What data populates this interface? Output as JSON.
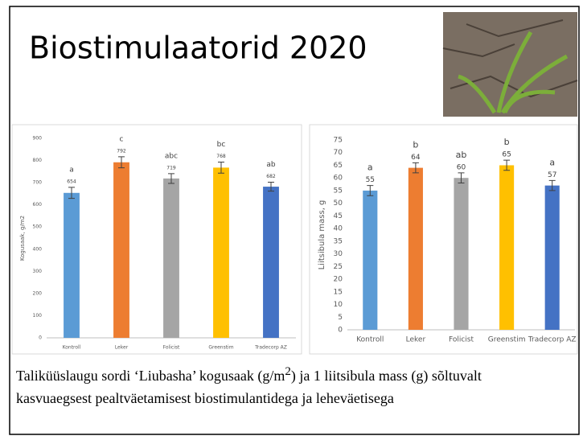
{
  "title": "Biostimulaatorid 2020",
  "chart_data": [
    {
      "type": "bar",
      "categories": [
        "Kontroll",
        "Leker",
        "Folicist",
        "Greenstim",
        "Tradecorp AZ"
      ],
      "values": [
        654,
        792,
        719,
        768,
        682
      ],
      "errors": [
        25,
        25,
        22,
        25,
        20
      ],
      "annotations": [
        "a",
        "c",
        "abc",
        "bc",
        "ab"
      ],
      "colors": [
        "#5b9bd5",
        "#ed7d31",
        "#a5a5a5",
        "#ffc000",
        "#4472c4"
      ],
      "ylabel": "Kogusaak, g/m2",
      "ylim": [
        0,
        900
      ],
      "yticks": [
        0,
        100,
        200,
        300,
        400,
        500,
        600,
        700,
        800,
        900
      ],
      "grid": false
    },
    {
      "type": "bar",
      "categories": [
        "Kontroll",
        "Leker",
        "Folicist",
        "Greenstim",
        "Tradecorp AZ"
      ],
      "values": [
        55,
        64,
        60,
        65,
        57
      ],
      "errors": [
        2,
        2,
        2,
        2,
        2
      ],
      "annotations": [
        "a",
        "b",
        "ab",
        "b",
        "a"
      ],
      "colors": [
        "#5b9bd5",
        "#ed7d31",
        "#a5a5a5",
        "#ffc000",
        "#4472c4"
      ],
      "ylabel": "Liitsibula mass, g",
      "ylim": [
        0,
        75
      ],
      "yticks": [
        0,
        5,
        10,
        15,
        20,
        25,
        30,
        35,
        40,
        45,
        50,
        55,
        60,
        65,
        70,
        75
      ],
      "grid": false
    }
  ],
  "caption": [
    "Taliküüslaugu sordi ‘Liubasha’ kogusaak (g/m",
    "2",
    ")  ja 1 liitsibula mass (g) sõltuvalt kasvuaegsest pealtväetamisest biostimulantidega ja leheväetisega"
  ]
}
